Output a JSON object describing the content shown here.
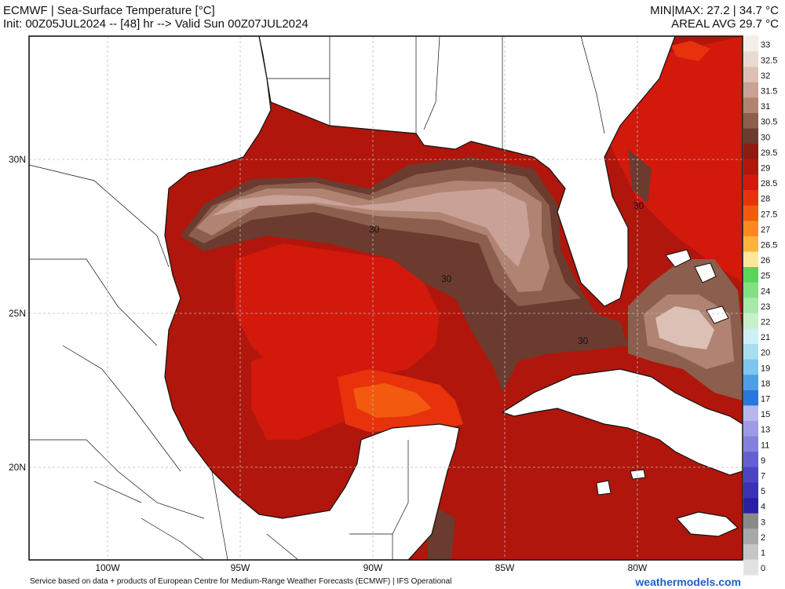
{
  "header": {
    "title": "ECMWF | Sea-Surface Temperature [°C]",
    "init_line": "Init: 00Z05JUL2024 -- [48] hr --> Valid Sun 00Z07JUL2024",
    "minmax": "MIN|MAX: 27.2 | 34.7 °C",
    "areal_avg": "AREAL AVG 29.7 °C"
  },
  "axes": {
    "lon_labels": [
      "100W",
      "95W",
      "90W",
      "85W",
      "80W"
    ],
    "lat_labels": [
      "30N",
      "25N",
      "20N"
    ]
  },
  "contour_labels": [
    "30",
    "30",
    "30",
    "30"
  ],
  "colorbar": {
    "labels": [
      "33",
      "32.5",
      "32",
      "31.5",
      "31",
      "30.5",
      "30",
      "29.5",
      "29",
      "28.5",
      "28",
      "27.5",
      "27",
      "26.5",
      "26",
      "25",
      "24",
      "23",
      "22",
      "21",
      "20",
      "19",
      "18",
      "17",
      "15",
      "13",
      "11",
      "9",
      "7",
      "5",
      "4",
      "3",
      "2",
      "1",
      "0"
    ],
    "colors": [
      "#f5ede9",
      "#ead9d3",
      "#dcc0b6",
      "#c9a196",
      "#b08373",
      "#8c5e4e",
      "#6b3b2f",
      "#8e1b0f",
      "#b0160c",
      "#d2190c",
      "#e8320c",
      "#f35a0f",
      "#fb8a1c",
      "#fdb33a",
      "#fde79a",
      "#5ad45a",
      "#84df84",
      "#a8e8a8",
      "#c8f0c8",
      "#cdeff5",
      "#a7dff0",
      "#7cc6ef",
      "#4e9fe6",
      "#2a78d9",
      "#b9b6ee",
      "#9e9ae6",
      "#8480dc",
      "#6560d0",
      "#4b45c0",
      "#3a32b0",
      "#2a1fa0",
      "#8a8a8a",
      "#a8a8a8",
      "#c6c6c6",
      "#e2e2e2"
    ]
  },
  "footer": {
    "attribution": "Service based on data + products of European Centre for Medium-Range Weather Forecasts (ECMWF) | IFS Operational",
    "brand": "weathermodels.com"
  }
}
